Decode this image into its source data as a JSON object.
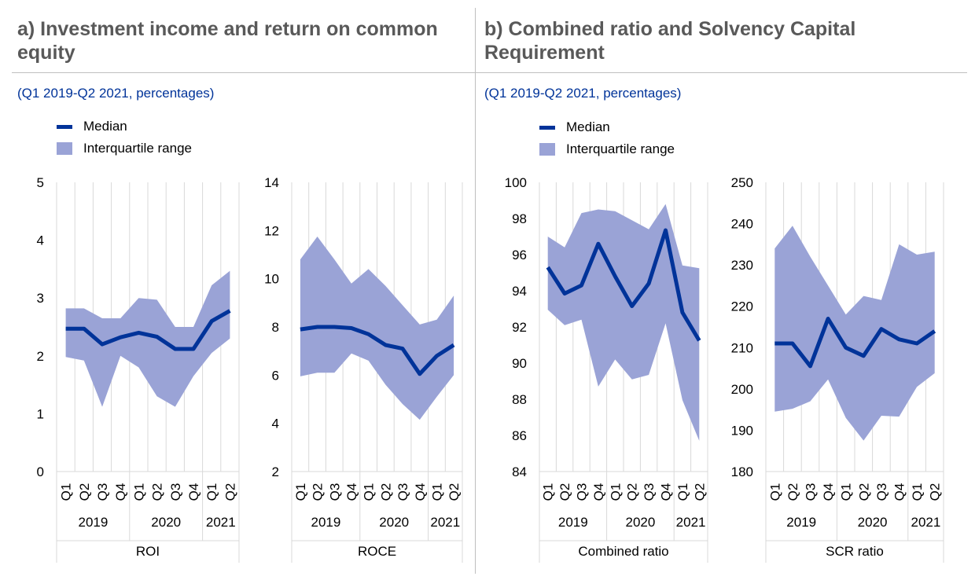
{
  "panels": [
    {
      "title_line1": "a) Investment income and return on common",
      "title_line2": "equity",
      "subtitle": "(Q1 2019-Q2 2021, percentages)"
    },
    {
      "title_line1": "b) Combined ratio and Solvency Capital",
      "title_line2": "Requirement",
      "subtitle": "(Q1 2019-Q2 2021, percentages)"
    }
  ],
  "legend": {
    "median": "Median",
    "iqr": "Interquartile range"
  },
  "colors": {
    "median": "#003399",
    "iqr": "#9aa3d6",
    "grid": "#d9d9d9",
    "text": "#595959",
    "accent": "#003399"
  },
  "chart_data": [
    {
      "type": "line",
      "name": "ROI",
      "xlabel": "ROI",
      "categories": [
        "Q1",
        "Q2",
        "Q3",
        "Q4",
        "Q1",
        "Q2",
        "Q3",
        "Q4",
        "Q1",
        "Q2"
      ],
      "years": [
        "2019",
        "2020",
        "2021"
      ],
      "ylim": [
        0,
        5
      ],
      "yticks": [
        0,
        1,
        2,
        3,
        4,
        5
      ],
      "series": [
        {
          "name": "Median",
          "values": [
            2.47,
            2.47,
            2.2,
            2.32,
            2.4,
            2.33,
            2.12,
            2.12,
            2.6,
            2.78
          ]
        },
        {
          "name": "Interquartile range upper",
          "values": [
            2.82,
            2.82,
            2.65,
            2.65,
            3.0,
            2.97,
            2.5,
            2.5,
            3.22,
            3.47
          ]
        },
        {
          "name": "Interquartile range lower",
          "values": [
            1.98,
            1.92,
            1.12,
            2.0,
            1.8,
            1.3,
            1.12,
            1.65,
            2.05,
            2.3
          ]
        }
      ]
    },
    {
      "type": "line",
      "name": "ROCE",
      "xlabel": "ROCE",
      "categories": [
        "Q1",
        "Q2",
        "Q3",
        "Q4",
        "Q1",
        "Q2",
        "Q3",
        "Q4",
        "Q1",
        "Q2"
      ],
      "years": [
        "2019",
        "2020",
        "2021"
      ],
      "ylim": [
        2,
        14
      ],
      "yticks": [
        2,
        4,
        6,
        8,
        10,
        12,
        14
      ],
      "series": [
        {
          "name": "Median",
          "values": [
            7.9,
            8.0,
            8.0,
            7.95,
            7.7,
            7.25,
            7.1,
            6.05,
            6.8,
            7.25
          ]
        },
        {
          "name": "Interquartile range upper",
          "values": [
            10.8,
            11.75,
            10.8,
            9.8,
            10.4,
            9.7,
            8.9,
            8.1,
            8.3,
            9.3
          ]
        },
        {
          "name": "Interquartile range lower",
          "values": [
            5.95,
            6.1,
            6.1,
            6.9,
            6.6,
            5.6,
            4.8,
            4.15,
            5.1,
            6.0
          ]
        }
      ]
    },
    {
      "type": "line",
      "name": "Combined ratio",
      "xlabel": "Combined ratio",
      "categories": [
        "Q1",
        "Q2",
        "Q3",
        "Q4",
        "Q1",
        "Q2",
        "Q3",
        "Q4",
        "Q1",
        "Q2"
      ],
      "years": [
        "2019",
        "2020",
        "2021"
      ],
      "ylim": [
        84,
        100
      ],
      "yticks": [
        84,
        86,
        88,
        90,
        92,
        94,
        96,
        98,
        100
      ],
      "series": [
        {
          "name": "Median",
          "values": [
            95.3,
            93.85,
            94.3,
            96.6,
            94.8,
            93.15,
            94.4,
            97.35,
            92.8,
            91.25
          ]
        },
        {
          "name": "Interquartile range upper",
          "values": [
            97.0,
            96.4,
            98.3,
            98.5,
            98.4,
            97.9,
            97.4,
            98.8,
            95.4,
            95.25
          ]
        },
        {
          "name": "Interquartile range lower",
          "values": [
            92.95,
            92.1,
            92.4,
            88.7,
            90.2,
            89.1,
            89.35,
            92.2,
            87.95,
            85.7
          ]
        }
      ]
    },
    {
      "type": "line",
      "name": "SCR ratio",
      "xlabel": "SCR ratio",
      "categories": [
        "Q1",
        "Q2",
        "Q3",
        "Q4",
        "Q1",
        "Q2",
        "Q3",
        "Q4",
        "Q1",
        "Q2"
      ],
      "years": [
        "2019",
        "2020",
        "2021"
      ],
      "ylim": [
        180,
        250
      ],
      "yticks": [
        180,
        190,
        200,
        210,
        220,
        230,
        240,
        250
      ],
      "series": [
        {
          "name": "Median",
          "values": [
            211,
            211,
            205.5,
            217,
            210,
            208,
            214.5,
            212,
            211,
            214
          ]
        },
        {
          "name": "Interquartile range upper",
          "values": [
            234,
            239.5,
            232,
            225,
            218,
            222.5,
            221.5,
            235,
            232.5,
            233.2
          ]
        },
        {
          "name": "Interquartile range lower",
          "values": [
            194.5,
            195.2,
            197,
            202.3,
            193,
            187.5,
            193.5,
            193.3,
            200.5,
            203.8
          ]
        }
      ]
    }
  ]
}
